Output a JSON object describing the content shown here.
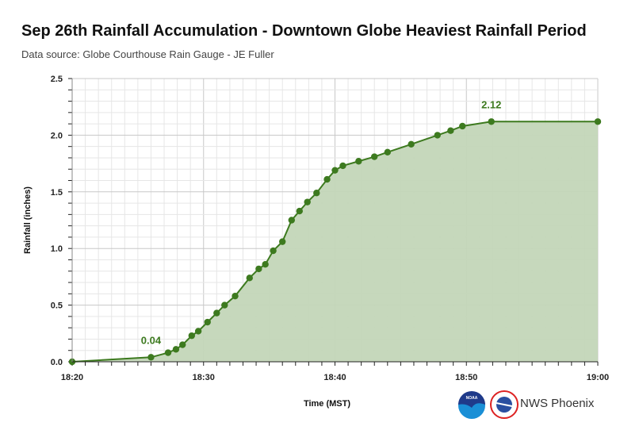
{
  "chart_data": {
    "type": "area",
    "title": "Sep 26th Rainfall Accumulation - Downtown Globe Heaviest Rainfall Period",
    "subtitle": "Data source: Globe Courthouse Rain Gauge - JE Fuller",
    "xlabel": "Time (MST)",
    "ylabel": "Rainfall (inches)",
    "xlim_minutes_after_1820": [
      0,
      40
    ],
    "ylim": [
      0,
      2.5
    ],
    "x_ticks": [
      "18:20",
      "18:30",
      "18:40",
      "18:50",
      "19:00"
    ],
    "y_ticks": [
      "0.0",
      "0.5",
      "1.0",
      "1.5",
      "2.0",
      "2.5"
    ],
    "grid": true,
    "series": [
      {
        "name": "Rainfall",
        "color": "#3d7a1f",
        "fill": "#c3d6b8",
        "x_minutes_after_1820": [
          0,
          6.0,
          7.3,
          7.9,
          8.4,
          9.1,
          9.6,
          10.3,
          11.0,
          11.6,
          12.4,
          13.5,
          14.2,
          14.7,
          15.3,
          16.0,
          16.7,
          17.3,
          17.9,
          18.6,
          19.4,
          20.0,
          20.6,
          21.8,
          23.0,
          24.0,
          25.8,
          27.8,
          28.8,
          29.7,
          31.9,
          40
        ],
        "values": [
          0,
          0.04,
          0.08,
          0.11,
          0.15,
          0.23,
          0.27,
          0.35,
          0.43,
          0.5,
          0.58,
          0.74,
          0.82,
          0.86,
          0.98,
          1.06,
          1.25,
          1.33,
          1.41,
          1.49,
          1.61,
          1.69,
          1.73,
          1.77,
          1.81,
          1.85,
          1.92,
          2.0,
          2.04,
          2.08,
          2.12,
          2.12
        ]
      }
    ],
    "annotations": [
      {
        "label": "0.04",
        "index": 1
      },
      {
        "label": "2.12",
        "index": 30
      }
    ]
  },
  "footer": {
    "credit": "NWS Phoenix",
    "logo_noaa": "NOAA",
    "logo_nws": "NATIONAL WEATHER SERVICE"
  }
}
